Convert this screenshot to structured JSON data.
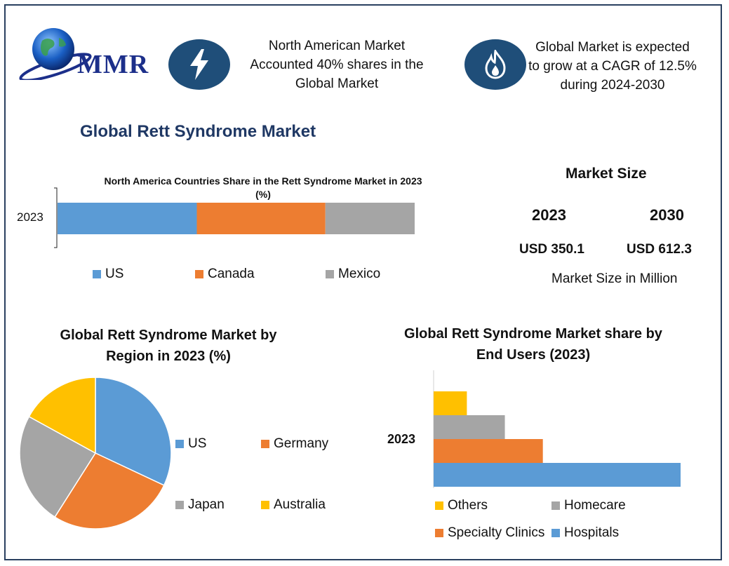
{
  "header": {
    "logo_text": "MMR",
    "info1": {
      "icon": "lightning-icon",
      "lines": [
        "North American Market",
        "Accounted 40% shares in the",
        "Global Market"
      ]
    },
    "info2": {
      "icon": "flame-icon",
      "lines": [
        "Global Market is expected",
        "to grow at a CAGR of 12.5%",
        "during 2024-2030"
      ]
    }
  },
  "main_title": "Global Rett Syndrome Market",
  "market_size": {
    "title": "Market Size",
    "years": [
      "2023",
      "2030"
    ],
    "values": [
      "USD 350.1",
      "USD 612.3"
    ],
    "note": "Market Size in Million"
  },
  "colors": {
    "blue": "#5b9bd5",
    "orange": "#ed7d31",
    "gray": "#a5a5a5",
    "yellow": "#ffc000",
    "navy": "#1f4e79"
  },
  "chart_data": [
    {
      "type": "bar",
      "orientation": "horizontal-stacked",
      "title_lines": [
        "North America Countries Share in the Rett Syndrome Market in 2023",
        "(%)"
      ],
      "categories": [
        "2023"
      ],
      "series": [
        {
          "name": "US",
          "values": [
            39
          ],
          "color": "#5b9bd5"
        },
        {
          "name": "Canada",
          "values": [
            36
          ],
          "color": "#ed7d31"
        },
        {
          "name": "Mexico",
          "values": [
            25
          ],
          "color": "#a5a5a5"
        }
      ],
      "legend": "bottom"
    },
    {
      "type": "pie",
      "title_lines": [
        "Global Rett Syndrome Market by",
        "Region in 2023 (%)"
      ],
      "slices": [
        {
          "name": "US",
          "value": 32,
          "color": "#5b9bd5"
        },
        {
          "name": "Germany",
          "value": 27,
          "color": "#ed7d31"
        },
        {
          "name": "Japan",
          "value": 24,
          "color": "#a5a5a5"
        },
        {
          "name": "Australia",
          "value": 17,
          "color": "#ffc000"
        }
      ],
      "legend": "right"
    },
    {
      "type": "bar",
      "orientation": "horizontal-grouped",
      "title_lines": [
        "Global Rett Syndrome Market share by",
        "End Users (2023)"
      ],
      "categories": [
        "2023"
      ],
      "series": [
        {
          "name": "Hospitals",
          "values": [
            52
          ],
          "color": "#5b9bd5"
        },
        {
          "name": "Specialty Clinics",
          "values": [
            23
          ],
          "color": "#ed7d31"
        },
        {
          "name": "Homecare",
          "values": [
            15
          ],
          "color": "#a5a5a5"
        },
        {
          "name": "Others",
          "values": [
            7
          ],
          "color": "#ffc000"
        }
      ],
      "legend_order": [
        "Others",
        "Homecare",
        "Specialty Clinics",
        "Hospitals"
      ],
      "legend": "bottom"
    }
  ]
}
